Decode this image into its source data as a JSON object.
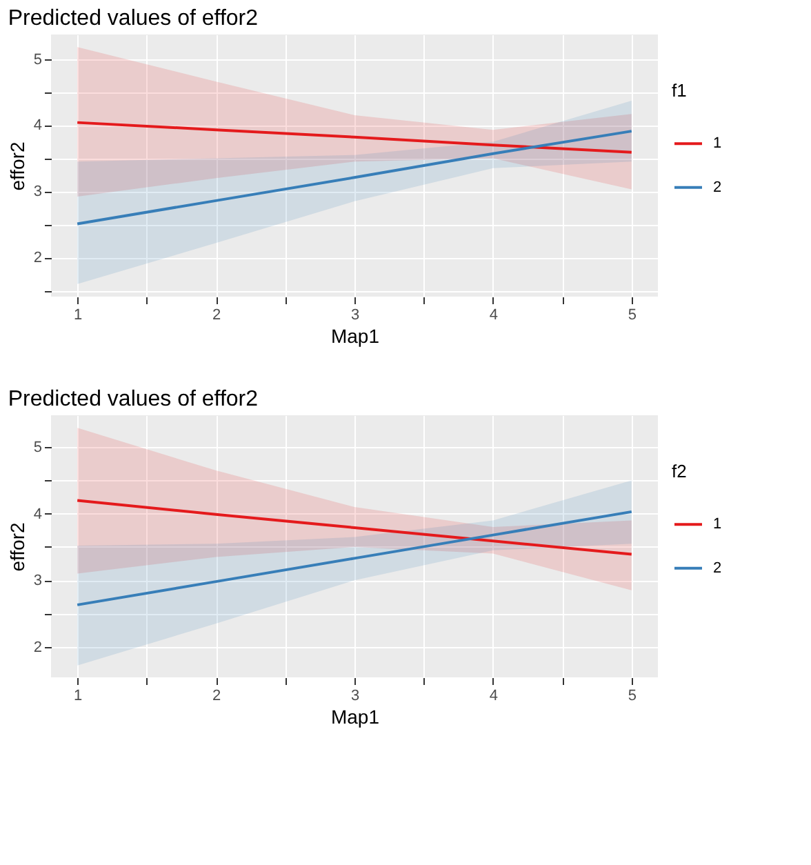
{
  "chart_data": [
    {
      "type": "line",
      "title": "Predicted values of effor2",
      "xlabel": "Map1",
      "ylabel": "effor2",
      "legend_title": "f1",
      "legend": "right",
      "grid": true,
      "line_style": "solid",
      "x": [
        1,
        2,
        3,
        4,
        5
      ],
      "xlim": [
        0.81,
        5.19
      ],
      "xticks": [
        1,
        {
          "value": 1.5,
          "label": null
        },
        2,
        {
          "value": 2.5,
          "label": null
        },
        3,
        {
          "value": 3.5,
          "label": null
        },
        4,
        {
          "value": 4.5,
          "label": null
        },
        5
      ],
      "ylim": [
        1.41,
        5.37
      ],
      "yticks": [
        {
          "value": 1.5,
          "label": null
        },
        2,
        {
          "value": 2.5,
          "label": null
        },
        3,
        {
          "value": 3.5,
          "label": null
        },
        4,
        {
          "value": 4.5,
          "label": null
        },
        5
      ],
      "series": [
        {
          "name": "1",
          "color": "#e41a1c",
          "values": [
            4.04,
            3.93,
            3.82,
            3.7,
            3.59
          ],
          "lower": [
            2.92,
            3.2,
            3.45,
            3.5,
            3.03
          ],
          "upper": [
            5.18,
            4.66,
            4.15,
            3.93,
            4.17
          ]
        },
        {
          "name": "2",
          "color": "#377eb8",
          "values": [
            2.51,
            2.86,
            3.21,
            3.57,
            3.91
          ],
          "lower": [
            1.6,
            2.22,
            2.85,
            3.35,
            3.45
          ],
          "upper": [
            3.45,
            3.5,
            3.55,
            3.75,
            4.37
          ]
        }
      ]
    },
    {
      "type": "line",
      "title": "Predicted values of effor2",
      "xlabel": "Map1",
      "ylabel": "effor2",
      "legend_title": "f2",
      "legend": "right",
      "grid": true,
      "line_style": "solid",
      "x": [
        1,
        2,
        3,
        4,
        5
      ],
      "xlim": [
        0.81,
        5.19
      ],
      "xticks": [
        1,
        {
          "value": 1.5,
          "label": null
        },
        2,
        {
          "value": 2.5,
          "label": null
        },
        3,
        {
          "value": 3.5,
          "label": null
        },
        4,
        {
          "value": 4.5,
          "label": null
        },
        5
      ],
      "ylim": [
        1.54,
        5.48
      ],
      "yticks": [
        2,
        {
          "value": 2.5,
          "label": null
        },
        3,
        {
          "value": 3.5,
          "label": null
        },
        4,
        {
          "value": 4.5,
          "label": null
        },
        5
      ],
      "series": [
        {
          "name": "1",
          "color": "#e41a1c",
          "values": [
            4.2,
            3.99,
            3.79,
            3.59,
            3.39
          ],
          "lower": [
            3.1,
            3.35,
            3.5,
            3.4,
            2.85
          ],
          "upper": [
            5.29,
            4.65,
            4.1,
            3.8,
            3.9
          ]
        },
        {
          "name": "2",
          "color": "#377eb8",
          "values": [
            2.63,
            2.98,
            3.33,
            3.68,
            4.03
          ],
          "lower": [
            1.72,
            2.35,
            3.0,
            3.45,
            3.55
          ],
          "upper": [
            3.52,
            3.55,
            3.65,
            3.9,
            4.5
          ]
        }
      ]
    }
  ]
}
